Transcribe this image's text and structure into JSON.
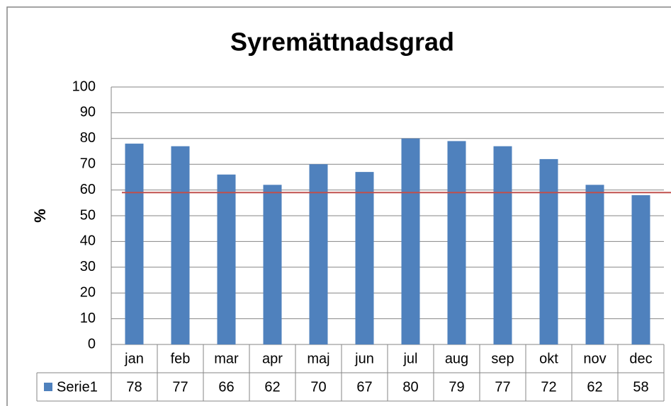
{
  "chart_data": {
    "type": "bar",
    "title": "Syremättnadsgrad",
    "y_label": "%",
    "categories": [
      "jan",
      "feb",
      "mar",
      "apr",
      "maj",
      "jun",
      "jul",
      "aug",
      "sep",
      "okt",
      "nov",
      "dec"
    ],
    "series": [
      {
        "name": "Serie1",
        "color": "#4f81bd",
        "values": [
          78,
          77,
          66,
          62,
          70,
          67,
          80,
          79,
          77,
          72,
          62,
          58
        ]
      }
    ],
    "ylim": [
      0,
      100
    ],
    "yticks": [
      0,
      10,
      20,
      30,
      40,
      50,
      60,
      70,
      80,
      90,
      100
    ],
    "grid": true,
    "reference_line": {
      "value": 59,
      "color": "#c0504d"
    }
  }
}
